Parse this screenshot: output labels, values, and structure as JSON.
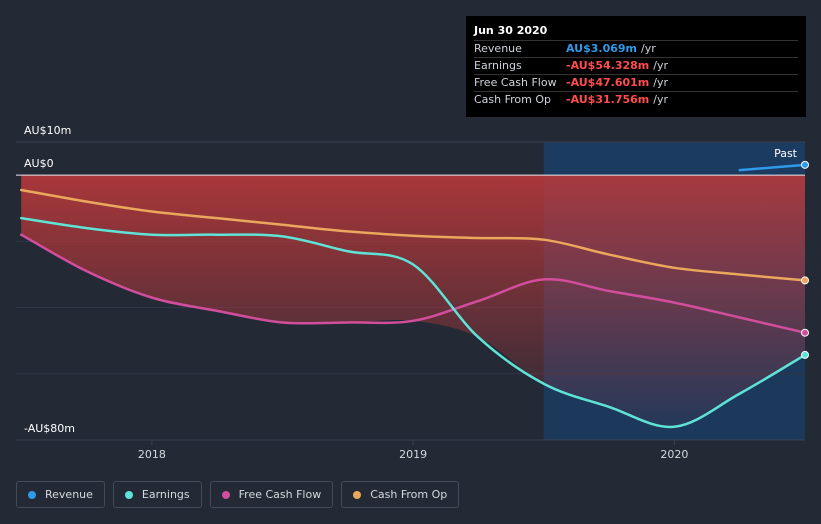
{
  "tooltip": {
    "date": "Jun 30 2020",
    "rows": [
      {
        "label": "Revenue",
        "value": "AU$3.069m",
        "unit": " /yr",
        "color": "#2f9ae9"
      },
      {
        "label": "Earnings",
        "value": "-AU$54.328m",
        "unit": " /yr",
        "color": "#ff4d4d"
      },
      {
        "label": "Free Cash Flow",
        "value": "-AU$47.601m",
        "unit": " /yr",
        "color": "#ff4d4d"
      },
      {
        "label": "Cash From Op",
        "value": "-AU$31.756m",
        "unit": " /yr",
        "color": "#ff4d4d"
      }
    ]
  },
  "past_label": "Past",
  "legend": [
    {
      "label": "Revenue",
      "color": "#2f9ae9"
    },
    {
      "label": "Earnings",
      "color": "#5fe3d6"
    },
    {
      "label": "Free Cash Flow",
      "color": "#d24e9d"
    },
    {
      "label": "Cash From Op",
      "color": "#eba75c"
    }
  ],
  "chart_data": {
    "type": "line",
    "title": "",
    "xlabel": "",
    "ylabel": "",
    "y_tick_labels": [
      "AU$10m",
      "AU$0",
      "-AU$80m"
    ],
    "y_ticks": [
      10,
      0,
      -80
    ],
    "ylim": [
      -80,
      10
    ],
    "x_tick_labels": [
      "2018",
      "2019",
      "2020"
    ],
    "x_ticks": [
      2018.0,
      2019.0,
      2020.0
    ],
    "xlim": [
      2017.48,
      2020.5
    ],
    "past_region_start": 2019.5,
    "series": [
      {
        "name": "Revenue",
        "color": "#2f9ae9",
        "x": [
          2020.25,
          2020.5
        ],
        "y": [
          1.5,
          3.1
        ]
      },
      {
        "name": "Earnings",
        "color": "#5fe3d6",
        "x": [
          2017.5,
          2017.75,
          2018.0,
          2018.25,
          2018.5,
          2018.75,
          2019.0,
          2019.25,
          2019.5,
          2019.75,
          2020.0,
          2020.25,
          2020.5
        ],
        "y": [
          -13,
          -16,
          -18,
          -18,
          -18.5,
          -23,
          -27,
          -49,
          -63,
          -70,
          -76,
          -66,
          -54.3
        ]
      },
      {
        "name": "Free Cash Flow",
        "color": "#d24e9d",
        "x": [
          2017.5,
          2017.75,
          2018.0,
          2018.25,
          2018.5,
          2018.75,
          2019.0,
          2019.25,
          2019.5,
          2019.75,
          2020.0,
          2020.25,
          2020.5
        ],
        "y": [
          -18,
          -29,
          -37,
          -41,
          -44.5,
          -44.5,
          -44,
          -38,
          -31.5,
          -35,
          -38.5,
          -43,
          -47.6
        ]
      },
      {
        "name": "Cash From Op",
        "color": "#eba75c",
        "x": [
          2017.5,
          2017.75,
          2018.0,
          2018.25,
          2018.5,
          2018.75,
          2019.0,
          2019.25,
          2019.5,
          2019.75,
          2020.0,
          2020.25,
          2020.5
        ],
        "y": [
          -4.5,
          -8,
          -11,
          -13,
          -15,
          -17,
          -18.3,
          -19,
          -19.5,
          -24,
          -28,
          -30,
          -31.8
        ]
      }
    ]
  }
}
